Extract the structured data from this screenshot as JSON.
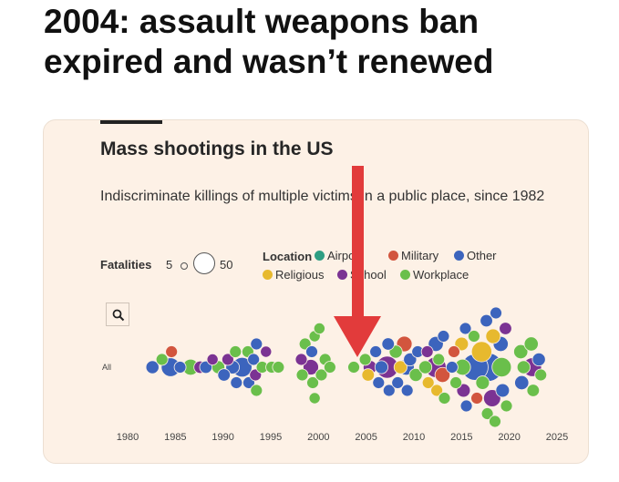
{
  "headline": {
    "line1": "2004:  assault weapons ban",
    "line2": "expired and wasn’t renewed"
  },
  "card": {
    "title": "Mass shootings in the US",
    "subtitle": "Indiscriminate killings of multiple victims in a public place, since 1982",
    "fatalities_label": "Fatalities",
    "fatalities_min": "5",
    "fatalities_max": "50",
    "location_label": "Location",
    "row_label": "All",
    "search_icon": "search-icon"
  },
  "legend": [
    {
      "label": "Airport",
      "color": "#2e9e83"
    },
    {
      "label": "Military",
      "color": "#d2553e"
    },
    {
      "label": "Other",
      "color": "#3c64bd"
    },
    {
      "label": "Religious",
      "color": "#e7b92e"
    },
    {
      "label": "School",
      "color": "#7b3393"
    },
    {
      "label": "Workplace",
      "color": "#6abf4b"
    }
  ],
  "annotation": {
    "arrow_year": 2004,
    "arrow_color": "#e23b3b"
  },
  "chart_data": {
    "type": "scatter",
    "title": "Mass shootings in the US",
    "subtitle": "Indiscriminate killings of multiple victims in a public place, since 1982",
    "x_ticks": [
      1980,
      1985,
      1990,
      1995,
      2000,
      2005,
      2010,
      2015,
      2020,
      2025
    ],
    "xlim": [
      1978,
      2026
    ],
    "size_legend": {
      "min_fatalities": 5,
      "max_fatalities": 50
    },
    "rows": [
      "All"
    ],
    "points": [
      {
        "year": 1982.6,
        "offset": 0,
        "fatalities": 8,
        "location": "Other"
      },
      {
        "year": 1983.6,
        "offset": -1,
        "fatalities": 6,
        "location": "Workplace"
      },
      {
        "year": 1984.5,
        "offset": 0,
        "fatalities": 21,
        "location": "Other"
      },
      {
        "year": 1984.6,
        "offset": -2,
        "fatalities": 6,
        "location": "Military"
      },
      {
        "year": 1985.5,
        "offset": 0,
        "fatalities": 6,
        "location": "Other"
      },
      {
        "year": 1986.6,
        "offset": 0,
        "fatalities": 14,
        "location": "Workplace"
      },
      {
        "year": 1987.6,
        "offset": 0,
        "fatalities": 7,
        "location": "School"
      },
      {
        "year": 1988.2,
        "offset": 0,
        "fatalities": 7,
        "location": "Other"
      },
      {
        "year": 1988.9,
        "offset": -1,
        "fatalities": 5,
        "location": "School"
      },
      {
        "year": 1989.5,
        "offset": 0,
        "fatalities": 8,
        "location": "Workplace"
      },
      {
        "year": 1990.1,
        "offset": 1,
        "fatalities": 7,
        "location": "Other"
      },
      {
        "year": 1990.5,
        "offset": -1,
        "fatalities": 6,
        "location": "School"
      },
      {
        "year": 1991.0,
        "offset": 0,
        "fatalities": 9,
        "location": "Other"
      },
      {
        "year": 1991.3,
        "offset": -2,
        "fatalities": 6,
        "location": "Workplace"
      },
      {
        "year": 1991.4,
        "offset": 2,
        "fatalities": 6,
        "location": "Other"
      },
      {
        "year": 1992.0,
        "offset": 0,
        "fatalities": 24,
        "location": "Other"
      },
      {
        "year": 1992.6,
        "offset": -2,
        "fatalities": 6,
        "location": "Workplace"
      },
      {
        "year": 1992.7,
        "offset": 2,
        "fatalities": 6,
        "location": "Other"
      },
      {
        "year": 1993.2,
        "offset": -1,
        "fatalities": 6,
        "location": "Other"
      },
      {
        "year": 1993.4,
        "offset": 1,
        "fatalities": 6,
        "location": "School"
      },
      {
        "year": 1993.5,
        "offset": -3,
        "fatalities": 6,
        "location": "Other"
      },
      {
        "year": 1993.5,
        "offset": 3,
        "fatalities": 6,
        "location": "Workplace"
      },
      {
        "year": 1994.1,
        "offset": 0,
        "fatalities": 6,
        "location": "Workplace"
      },
      {
        "year": 1994.5,
        "offset": -2,
        "fatalities": 5,
        "location": "School"
      },
      {
        "year": 1995.1,
        "offset": 0,
        "fatalities": 6,
        "location": "Workplace"
      },
      {
        "year": 1995.8,
        "offset": 0,
        "fatalities": 6,
        "location": "Workplace"
      },
      {
        "year": 1998.2,
        "offset": -1,
        "fatalities": 6,
        "location": "School"
      },
      {
        "year": 1998.3,
        "offset": 1,
        "fatalities": 6,
        "location": "Workplace"
      },
      {
        "year": 1998.6,
        "offset": -3,
        "fatalities": 6,
        "location": "Workplace"
      },
      {
        "year": 1999.2,
        "offset": 0,
        "fatalities": 13,
        "location": "School"
      },
      {
        "year": 1999.3,
        "offset": -2,
        "fatalities": 6,
        "location": "Other"
      },
      {
        "year": 1999.4,
        "offset": 2,
        "fatalities": 6,
        "location": "Workplace"
      },
      {
        "year": 1999.6,
        "offset": -4,
        "fatalities": 5,
        "location": "Workplace"
      },
      {
        "year": 1999.6,
        "offset": 4,
        "fatalities": 5,
        "location": "Workplace"
      },
      {
        "year": 2000.1,
        "offset": -5,
        "fatalities": 5,
        "location": "Workplace"
      },
      {
        "year": 2000.3,
        "offset": 1,
        "fatalities": 6,
        "location": "Workplace"
      },
      {
        "year": 2000.7,
        "offset": -1,
        "fatalities": 6,
        "location": "Workplace"
      },
      {
        "year": 2001.2,
        "offset": 0,
        "fatalities": 6,
        "location": "Workplace"
      },
      {
        "year": 2003.7,
        "offset": 0,
        "fatalities": 6,
        "location": "Workplace"
      },
      {
        "year": 2004.9,
        "offset": -1,
        "fatalities": 6,
        "location": "Workplace"
      },
      {
        "year": 2005.2,
        "offset": 1,
        "fatalities": 7,
        "location": "Religious"
      },
      {
        "year": 2005.4,
        "offset": 0,
        "fatalities": 9,
        "location": "School"
      },
      {
        "year": 2006.0,
        "offset": -2,
        "fatalities": 6,
        "location": "Other"
      },
      {
        "year": 2006.3,
        "offset": 2,
        "fatalities": 6,
        "location": "Other"
      },
      {
        "year": 2006.6,
        "offset": 0,
        "fatalities": 8,
        "location": "Other"
      },
      {
        "year": 2007.2,
        "offset": 0,
        "fatalities": 32,
        "location": "School"
      },
      {
        "year": 2007.3,
        "offset": -3,
        "fatalities": 7,
        "location": "Other"
      },
      {
        "year": 2007.4,
        "offset": 3,
        "fatalities": 6,
        "location": "Other"
      },
      {
        "year": 2008.1,
        "offset": -2,
        "fatalities": 8,
        "location": "Workplace"
      },
      {
        "year": 2008.3,
        "offset": 2,
        "fatalities": 6,
        "location": "Other"
      },
      {
        "year": 2008.6,
        "offset": 0,
        "fatalities": 8,
        "location": "Religious"
      },
      {
        "year": 2009.0,
        "offset": -3,
        "fatalities": 13,
        "location": "Military"
      },
      {
        "year": 2009.2,
        "offset": 0,
        "fatalities": 14,
        "location": "Other"
      },
      {
        "year": 2009.3,
        "offset": 3,
        "fatalities": 6,
        "location": "Other"
      },
      {
        "year": 2009.6,
        "offset": -1,
        "fatalities": 8,
        "location": "Other"
      },
      {
        "year": 2010.2,
        "offset": 1,
        "fatalities": 8,
        "location": "Workplace"
      },
      {
        "year": 2010.4,
        "offset": -2,
        "fatalities": 6,
        "location": "Other"
      },
      {
        "year": 2011.2,
        "offset": 0,
        "fatalities": 8,
        "location": "Workplace"
      },
      {
        "year": 2011.4,
        "offset": -2,
        "fatalities": 6,
        "location": "School"
      },
      {
        "year": 2011.5,
        "offset": 2,
        "fatalities": 6,
        "location": "Religious"
      },
      {
        "year": 2012.3,
        "offset": 0,
        "fatalities": 27,
        "location": "School"
      },
      {
        "year": 2012.3,
        "offset": -3,
        "fatalities": 12,
        "location": "Other"
      },
      {
        "year": 2012.4,
        "offset": 3,
        "fatalities": 6,
        "location": "Religious"
      },
      {
        "year": 2012.6,
        "offset": -1,
        "fatalities": 6,
        "location": "Workplace"
      },
      {
        "year": 2013.0,
        "offset": 1,
        "fatalities": 12,
        "location": "Military"
      },
      {
        "year": 2013.1,
        "offset": -4,
        "fatalities": 6,
        "location": "Other"
      },
      {
        "year": 2013.2,
        "offset": 4,
        "fatalities": 6,
        "location": "Workplace"
      },
      {
        "year": 2014.0,
        "offset": 0,
        "fatalities": 6,
        "location": "Other"
      },
      {
        "year": 2014.2,
        "offset": -2,
        "fatalities": 6,
        "location": "Military"
      },
      {
        "year": 2014.4,
        "offset": 2,
        "fatalities": 6,
        "location": "Workplace"
      },
      {
        "year": 2015.0,
        "offset": -3,
        "fatalities": 9,
        "location": "Religious"
      },
      {
        "year": 2015.1,
        "offset": 0,
        "fatalities": 14,
        "location": "Workplace"
      },
      {
        "year": 2015.2,
        "offset": 3,
        "fatalities": 9,
        "location": "School"
      },
      {
        "year": 2015.4,
        "offset": -5,
        "fatalities": 6,
        "location": "Other"
      },
      {
        "year": 2015.5,
        "offset": 5,
        "fatalities": 6,
        "location": "Other"
      },
      {
        "year": 2016.4,
        "offset": 0,
        "fatalities": 49,
        "location": "Other"
      },
      {
        "year": 2016.3,
        "offset": -4,
        "fatalities": 6,
        "location": "Workplace"
      },
      {
        "year": 2016.6,
        "offset": 4,
        "fatalities": 6,
        "location": "Military"
      },
      {
        "year": 2017.1,
        "offset": -2,
        "fatalities": 26,
        "location": "Religious"
      },
      {
        "year": 2017.2,
        "offset": 2,
        "fatalities": 9,
        "location": "Workplace"
      },
      {
        "year": 2017.8,
        "offset": 0,
        "fatalities": 58,
        "location": "Other"
      },
      {
        "year": 2017.6,
        "offset": -6,
        "fatalities": 7,
        "location": "Other"
      },
      {
        "year": 2017.7,
        "offset": 6,
        "fatalities": 6,
        "location": "Workplace"
      },
      {
        "year": 2018.2,
        "offset": 4,
        "fatalities": 17,
        "location": "School"
      },
      {
        "year": 2018.3,
        "offset": -4,
        "fatalities": 11,
        "location": "Religious"
      },
      {
        "year": 2018.5,
        "offset": 7,
        "fatalities": 6,
        "location": "Workplace"
      },
      {
        "year": 2018.6,
        "offset": -7,
        "fatalities": 6,
        "location": "Other"
      },
      {
        "year": 2019.2,
        "offset": 0,
        "fatalities": 23,
        "location": "Workplace"
      },
      {
        "year": 2019.1,
        "offset": -3,
        "fatalities": 12,
        "location": "Other"
      },
      {
        "year": 2019.3,
        "offset": 3,
        "fatalities": 9,
        "location": "Other"
      },
      {
        "year": 2019.6,
        "offset": -5,
        "fatalities": 7,
        "location": "School"
      },
      {
        "year": 2019.7,
        "offset": 5,
        "fatalities": 6,
        "location": "Workplace"
      },
      {
        "year": 2021.2,
        "offset": -2,
        "fatalities": 10,
        "location": "Workplace"
      },
      {
        "year": 2021.3,
        "offset": 2,
        "fatalities": 10,
        "location": "Other"
      },
      {
        "year": 2021.5,
        "offset": 0,
        "fatalities": 8,
        "location": "Workplace"
      },
      {
        "year": 2022.4,
        "offset": 0,
        "fatalities": 21,
        "location": "School"
      },
      {
        "year": 2022.3,
        "offset": -3,
        "fatalities": 10,
        "location": "Workplace"
      },
      {
        "year": 2022.5,
        "offset": 3,
        "fatalities": 7,
        "location": "Workplace"
      },
      {
        "year": 2023.1,
        "offset": -1,
        "fatalities": 8,
        "location": "Other"
      },
      {
        "year": 2023.3,
        "offset": 1,
        "fatalities": 6,
        "location": "Workplace"
      }
    ]
  }
}
